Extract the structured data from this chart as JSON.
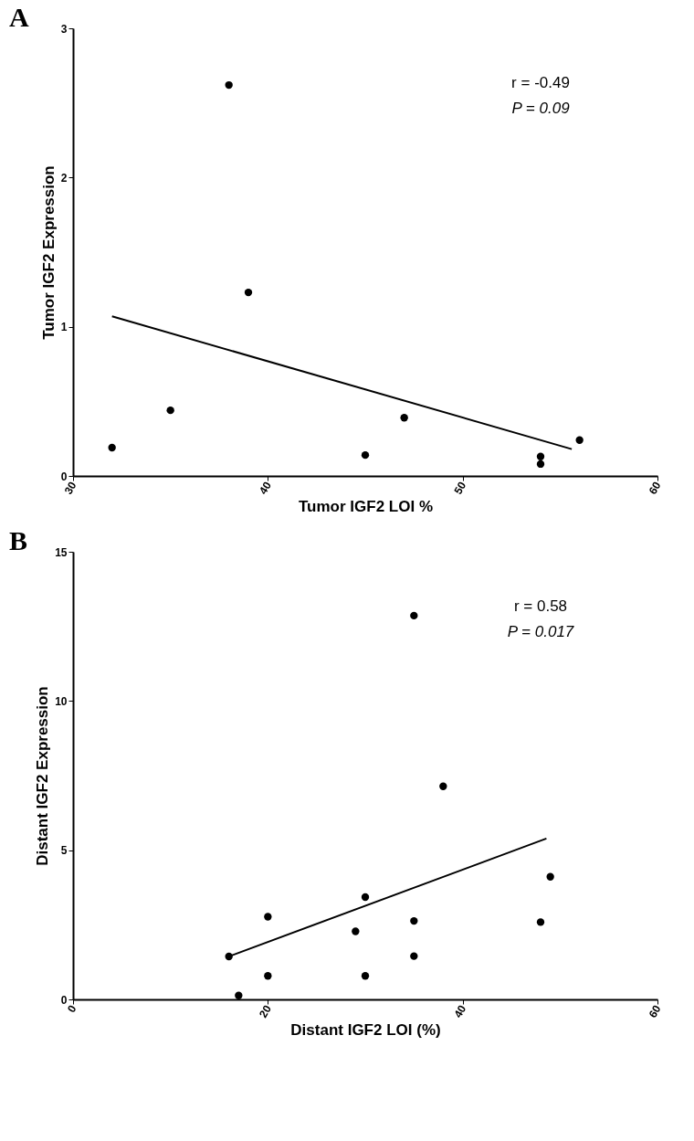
{
  "chart_data": [
    {
      "type": "scatter",
      "title": "A",
      "xlabel": "Tumor IGF2 LOI %",
      "ylabel": "Tumor IGF2 Expression",
      "annotations": [
        "r = -0.49",
        "P = 0.09"
      ],
      "xlim": [
        30,
        60
      ],
      "xticks": [
        30,
        40,
        50,
        60
      ],
      "ylim": [
        0,
        3
      ],
      "yticks": [
        0,
        1,
        2,
        3
      ],
      "grid": false,
      "series": [
        {
          "color": "#000000",
          "marker": "circle",
          "x": [
            32,
            35,
            38,
            39,
            45,
            47,
            54,
            54,
            56
          ],
          "values": [
            0.19,
            0.44,
            2.62,
            1.23,
            0.14,
            0.39,
            0.13,
            0.08,
            0.24
          ]
        },
        {
          "type": "line",
          "color": "#000000",
          "x": [
            32,
            55.6
          ],
          "values": [
            1.07,
            0.18
          ]
        }
      ]
    },
    {
      "type": "scatter",
      "title": "B",
      "xlabel": "Distant IGF2 LOI (%)",
      "ylabel": "Distant IGF2 Expression",
      "annotations": [
        "r = 0.58",
        "P = 0.017"
      ],
      "xlim": [
        0,
        60
      ],
      "xticks": [
        0,
        20,
        40,
        60
      ],
      "ylim": [
        0,
        15
      ],
      "yticks": [
        0,
        5,
        10,
        15
      ],
      "grid": false,
      "series": [
        {
          "color": "#000000",
          "marker": "circle",
          "x": [
            16,
            17,
            20,
            20,
            29,
            30,
            30,
            35,
            35,
            35,
            38,
            48,
            49
          ],
          "values": [
            1.44,
            0.13,
            2.77,
            0.79,
            2.28,
            3.43,
            0.79,
            12.86,
            2.63,
            1.45,
            7.14,
            2.59,
            4.11
          ]
        },
        {
          "type": "line",
          "color": "#000000",
          "x": [
            16,
            48.6
          ],
          "values": [
            1.44,
            5.39
          ]
        }
      ]
    }
  ]
}
